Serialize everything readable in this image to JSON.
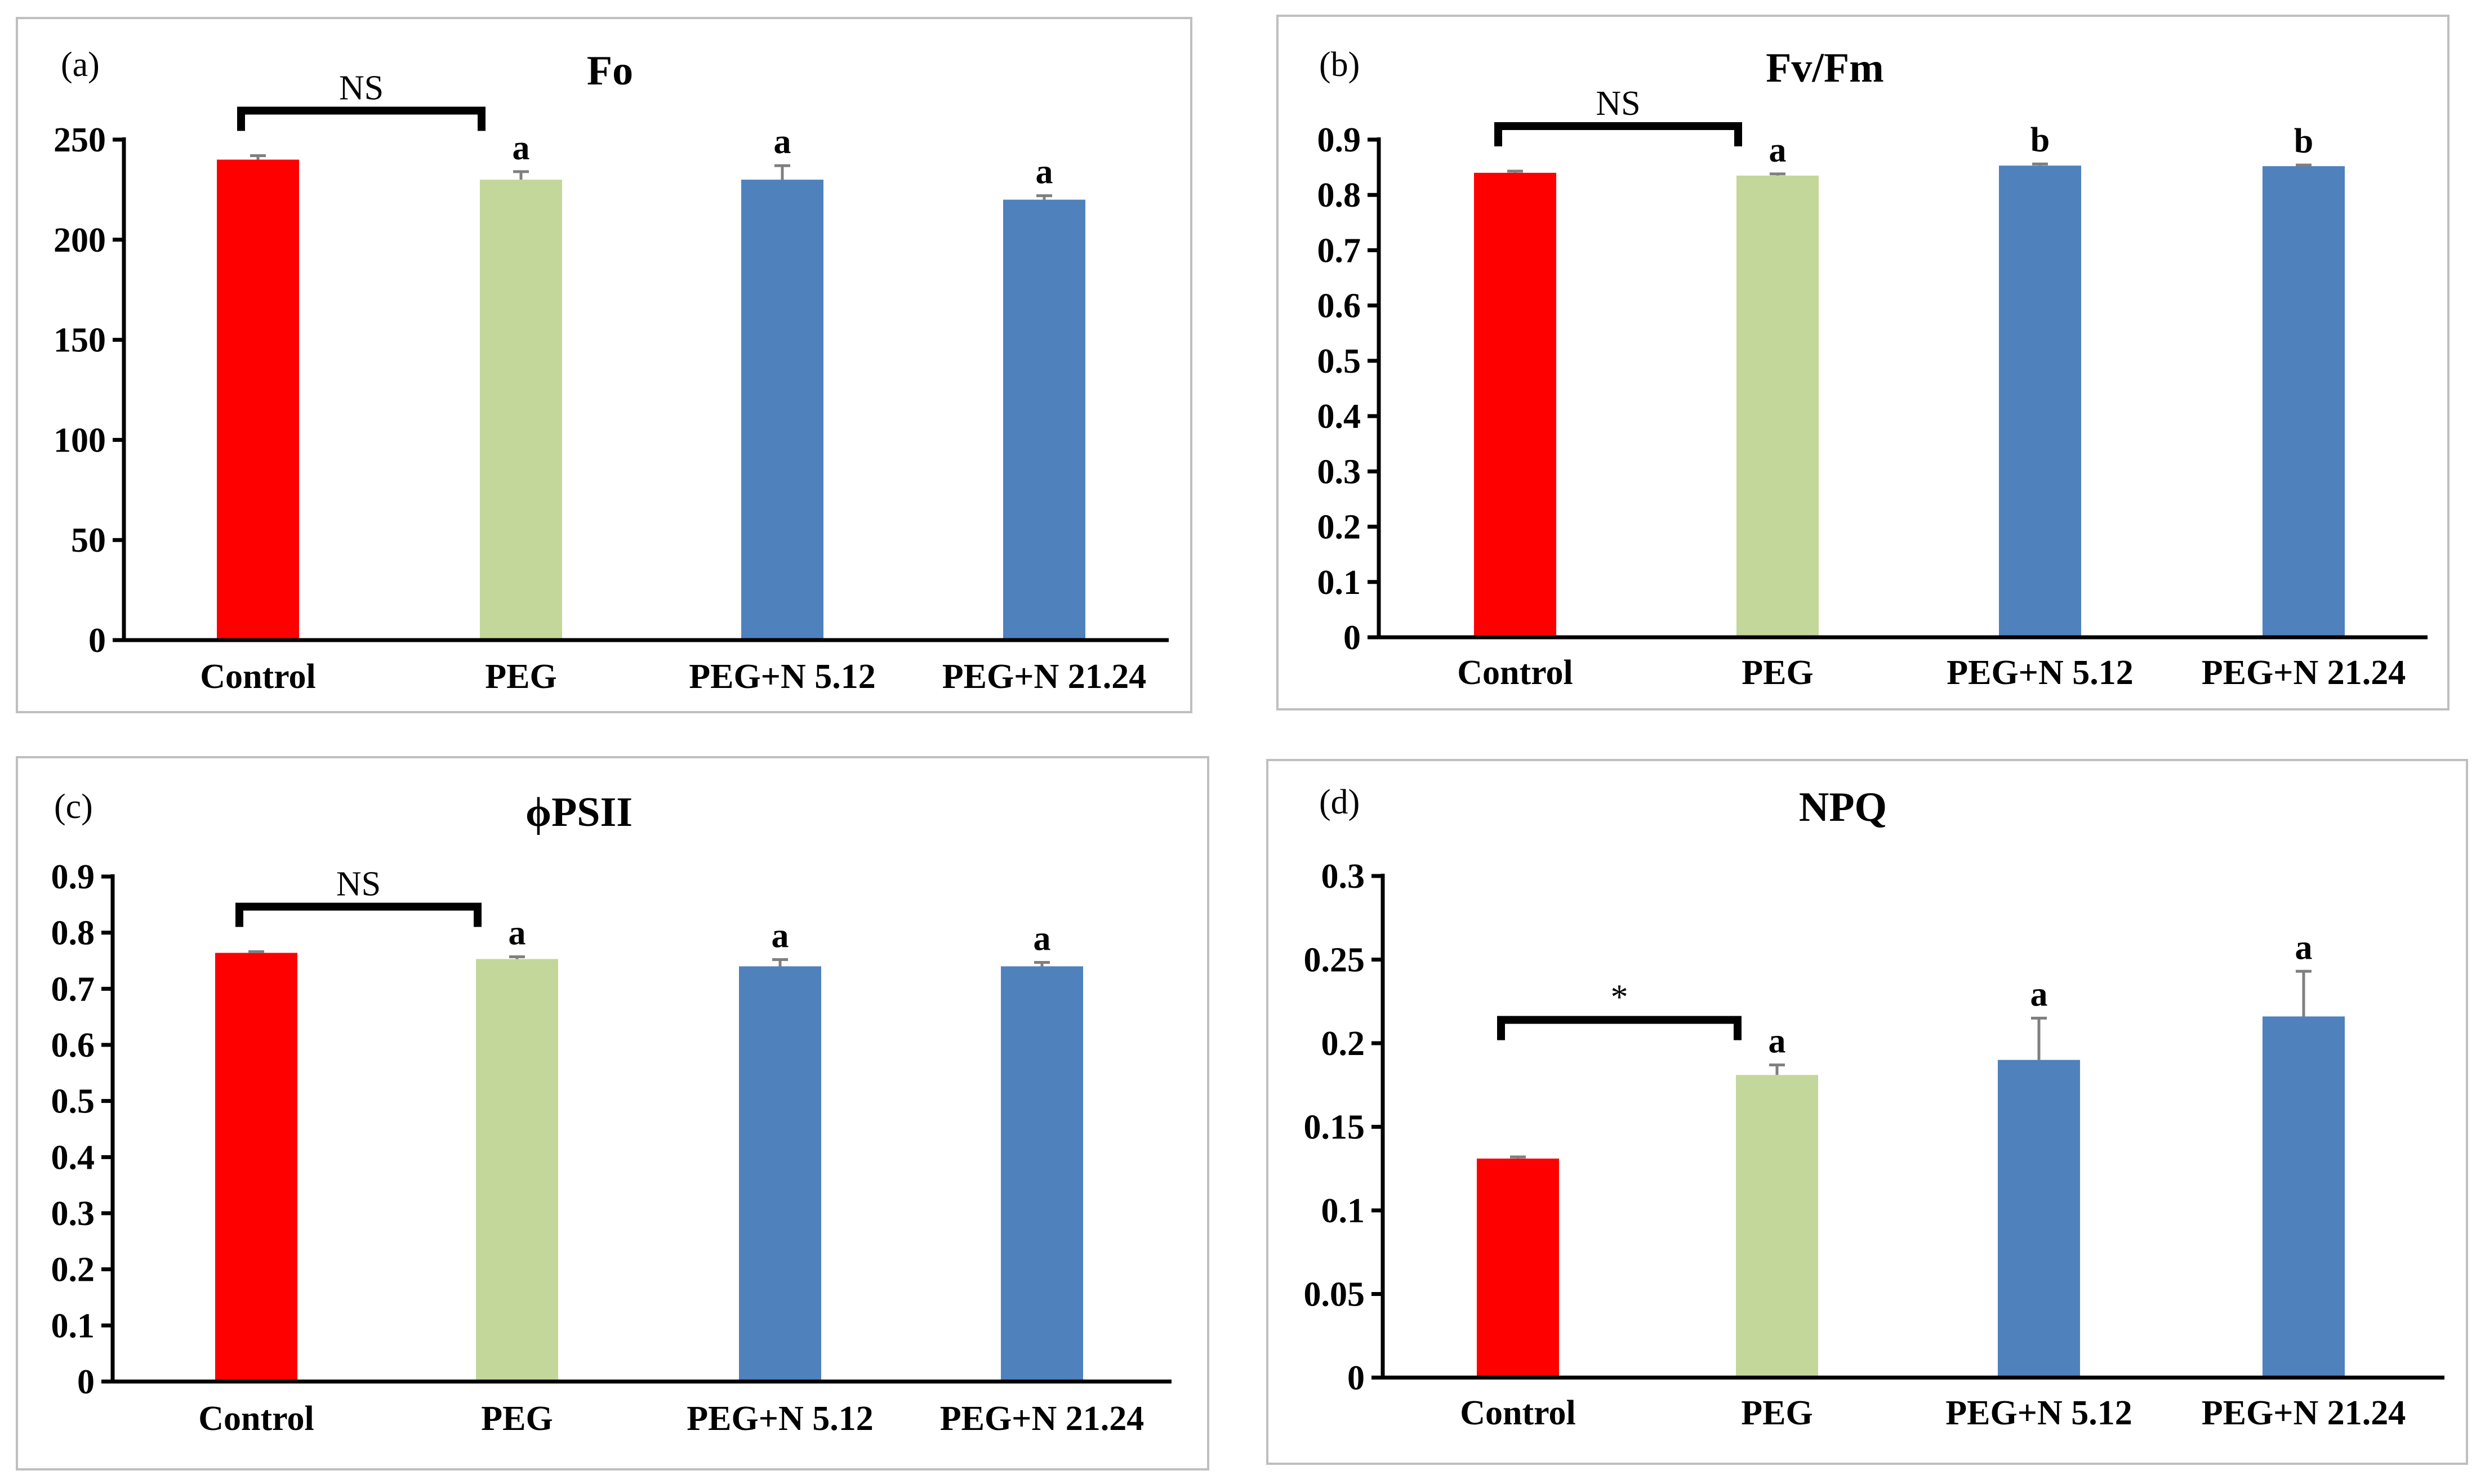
{
  "figure": {
    "panel_count": 4
  },
  "chart_data": [
    {
      "type": "bar",
      "panel_label": "(a)",
      "title": "Fo",
      "categories": [
        "Control",
        "PEG",
        "PEG+N 5.12",
        "PEG+N 21.24"
      ],
      "values": [
        240,
        230,
        230,
        220
      ],
      "errors": [
        2,
        4,
        7,
        2
      ],
      "colors": [
        "#ff0000",
        "#c4d79b",
        "#4f81bd",
        "#4f81bd"
      ],
      "significance": [
        "",
        "a",
        "a",
        "a"
      ],
      "bracket": {
        "from": 0,
        "to": 1,
        "label": "NS"
      },
      "ylim": [
        0,
        250
      ],
      "yticks": [
        0,
        50,
        100,
        150,
        200,
        250
      ],
      "ytick_labels": [
        "0",
        "50",
        "100",
        "150",
        "200",
        "250"
      ],
      "xlabel": "",
      "ylabel": ""
    },
    {
      "type": "bar",
      "panel_label": "(b)",
      "title": "Fv/Fm",
      "categories": [
        "Control",
        "PEG",
        "PEG+N 5.12",
        "PEG+N 21.24"
      ],
      "values": [
        0.84,
        0.835,
        0.853,
        0.852
      ],
      "errors": [
        0.003,
        0.003,
        0.003,
        0.002
      ],
      "colors": [
        "#ff0000",
        "#c4d79b",
        "#4f81bd",
        "#4f81bd"
      ],
      "significance": [
        "",
        "a",
        "b",
        "b"
      ],
      "bracket": {
        "from": 0,
        "to": 1,
        "label": "NS"
      },
      "ylim": [
        0,
        0.9
      ],
      "yticks": [
        0,
        0.1,
        0.2,
        0.3,
        0.4,
        0.5,
        0.6,
        0.7,
        0.8,
        0.9
      ],
      "ytick_labels": [
        "0",
        "0.1",
        "0.2",
        "0.3",
        "0.4",
        "0.5",
        "0.6",
        "0.7",
        "0.8",
        "0.9"
      ],
      "xlabel": "",
      "ylabel": ""
    },
    {
      "type": "bar",
      "panel_label": "(c)",
      "title": "ϕPSII",
      "categories": [
        "Control",
        "PEG",
        "PEG+N 5.12",
        "PEG+N 21.24"
      ],
      "values": [
        0.764,
        0.753,
        0.74,
        0.74
      ],
      "errors": [
        0.002,
        0.004,
        0.012,
        0.007
      ],
      "colors": [
        "#ff0000",
        "#c4d79b",
        "#4f81bd",
        "#4f81bd"
      ],
      "significance": [
        "",
        "a",
        "a",
        "a"
      ],
      "bracket": {
        "from": 0,
        "to": 1,
        "label": "NS"
      },
      "ylim": [
        0,
        0.9
      ],
      "yticks": [
        0,
        0.1,
        0.2,
        0.3,
        0.4,
        0.5,
        0.6,
        0.7,
        0.8,
        0.9
      ],
      "ytick_labels": [
        "0",
        "0.1",
        "0.2",
        "0.3",
        "0.4",
        "0.5",
        "0.6",
        "0.7",
        "0.8",
        "0.9"
      ],
      "xlabel": "",
      "ylabel": ""
    },
    {
      "type": "bar",
      "panel_label": "(d)",
      "title": "NPQ",
      "categories": [
        "Control",
        "PEG",
        "PEG+N 5.12",
        "PEG+N 21.24"
      ],
      "values": [
        0.131,
        0.181,
        0.19,
        0.216
      ],
      "errors": [
        0.001,
        0.006,
        0.025,
        0.027
      ],
      "colors": [
        "#ff0000",
        "#c4d79b",
        "#4f81bd",
        "#4f81bd"
      ],
      "significance": [
        "",
        "a",
        "a",
        "a"
      ],
      "bracket": {
        "from": 0,
        "to": 1,
        "label": "*"
      },
      "ylim": [
        0,
        0.3
      ],
      "yticks": [
        0,
        0.05,
        0.1,
        0.15,
        0.2,
        0.25,
        0.3
      ],
      "ytick_labels": [
        "0",
        "0.05",
        "0.1",
        "0.15",
        "0.2",
        "0.25",
        "0.3"
      ],
      "xlabel": "",
      "ylabel": ""
    }
  ]
}
